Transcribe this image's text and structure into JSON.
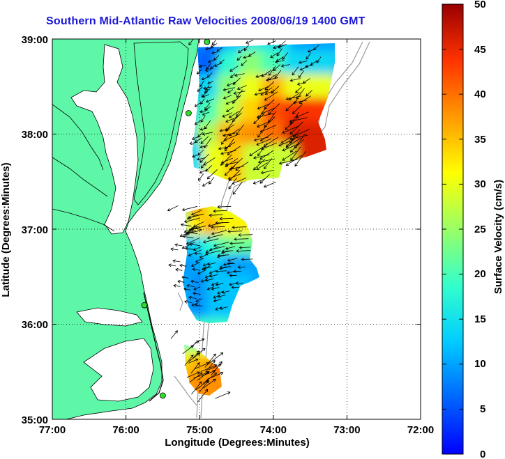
{
  "title": "Southern Mid-Atlantic Raw Velocities 2008/06/19 1400 GMT",
  "x_axis": {
    "label": "Longitude (Degrees:Minutes)",
    "ticks": [
      "77:00",
      "76:00",
      "75:00",
      "74:00",
      "73:00",
      "72:00"
    ]
  },
  "y_axis": {
    "label": "Latitude (Degrees:Minutes)",
    "ticks": [
      "39:00",
      "38:00",
      "37:00",
      "36:00",
      "35:00"
    ]
  },
  "colorbar": {
    "label": "Surface Velocity (cm/s)",
    "ticks": [
      "50",
      "45",
      "40",
      "35",
      "30",
      "25",
      "20",
      "15",
      "10",
      "5",
      "0"
    ],
    "min": 0,
    "max": 50,
    "colormap": "jet"
  },
  "colors": {
    "land": "#5ef7a8",
    "title": "#1a16d6",
    "station": "#2fdc2f",
    "bathymetry": "#9a9a9a"
  },
  "chart_data": {
    "type": "heatmap",
    "description_units": "lon/lat in decimal degrees (west negative), speed in cm/s",
    "xlim": [
      -77,
      -72
    ],
    "ylim": [
      35,
      39
    ],
    "grid": true,
    "regions": [
      {
        "name": "north",
        "cells": [
          {
            "lon": -74.9,
            "lat": 38.85,
            "speed": 9
          },
          {
            "lon": -74.6,
            "lat": 38.85,
            "speed": 6
          },
          {
            "lon": -74.3,
            "lat": 38.85,
            "speed": 12
          },
          {
            "lon": -74.0,
            "lat": 38.85,
            "speed": 16
          },
          {
            "lon": -73.7,
            "lat": 38.85,
            "speed": 14
          },
          {
            "lon": -73.4,
            "lat": 38.85,
            "speed": 10
          },
          {
            "lon": -75.0,
            "lat": 38.6,
            "speed": 8
          },
          {
            "lon": -74.7,
            "lat": 38.6,
            "speed": 6
          },
          {
            "lon": -74.4,
            "lat": 38.6,
            "speed": 18
          },
          {
            "lon": -74.1,
            "lat": 38.6,
            "speed": 24
          },
          {
            "lon": -73.8,
            "lat": 38.6,
            "speed": 20
          },
          {
            "lon": -73.5,
            "lat": 38.6,
            "speed": 14
          },
          {
            "lon": -75.0,
            "lat": 38.35,
            "speed": 8
          },
          {
            "lon": -74.7,
            "lat": 38.35,
            "speed": 14
          },
          {
            "lon": -74.4,
            "lat": 38.35,
            "speed": 24
          },
          {
            "lon": -74.1,
            "lat": 38.35,
            "speed": 30
          },
          {
            "lon": -73.8,
            "lat": 38.35,
            "speed": 36
          },
          {
            "lon": -73.5,
            "lat": 38.35,
            "speed": 30
          },
          {
            "lon": -75.0,
            "lat": 38.1,
            "speed": 10
          },
          {
            "lon": -74.7,
            "lat": 38.1,
            "speed": 20
          },
          {
            "lon": -74.4,
            "lat": 38.1,
            "speed": 27
          },
          {
            "lon": -74.1,
            "lat": 38.1,
            "speed": 34
          },
          {
            "lon": -73.8,
            "lat": 38.1,
            "speed": 42
          },
          {
            "lon": -73.5,
            "lat": 38.1,
            "speed": 44
          },
          {
            "lon": -75.0,
            "lat": 37.85,
            "speed": 12
          },
          {
            "lon": -74.7,
            "lat": 37.85,
            "speed": 26
          },
          {
            "lon": -74.4,
            "lat": 37.85,
            "speed": 36
          },
          {
            "lon": -74.1,
            "lat": 37.85,
            "speed": 38
          },
          {
            "lon": -73.8,
            "lat": 37.85,
            "speed": 40
          },
          {
            "lon": -73.5,
            "lat": 37.85,
            "speed": 46
          },
          {
            "lon": -74.9,
            "lat": 37.62,
            "speed": 14
          },
          {
            "lon": -74.6,
            "lat": 37.62,
            "speed": 30
          },
          {
            "lon": -74.3,
            "lat": 37.62,
            "speed": 35
          },
          {
            "lon": -74.05,
            "lat": 37.62,
            "speed": 28
          }
        ]
      },
      {
        "name": "middle",
        "cells": [
          {
            "lon": -75.1,
            "lat": 37.1,
            "speed": 24
          },
          {
            "lon": -74.85,
            "lat": 37.1,
            "speed": 36
          },
          {
            "lon": -74.6,
            "lat": 37.1,
            "speed": 30
          },
          {
            "lon": -75.15,
            "lat": 36.9,
            "speed": 20
          },
          {
            "lon": -74.9,
            "lat": 36.9,
            "speed": 32
          },
          {
            "lon": -74.65,
            "lat": 36.9,
            "speed": 36
          },
          {
            "lon": -74.45,
            "lat": 36.9,
            "speed": 32
          },
          {
            "lon": -75.15,
            "lat": 36.7,
            "speed": 10
          },
          {
            "lon": -74.9,
            "lat": 36.7,
            "speed": 14
          },
          {
            "lon": -74.65,
            "lat": 36.7,
            "speed": 18
          },
          {
            "lon": -74.45,
            "lat": 36.7,
            "speed": 22
          },
          {
            "lon": -75.15,
            "lat": 36.5,
            "speed": 8
          },
          {
            "lon": -74.9,
            "lat": 36.5,
            "speed": 10
          },
          {
            "lon": -74.65,
            "lat": 36.5,
            "speed": 13
          },
          {
            "lon": -74.4,
            "lat": 36.5,
            "speed": 10
          },
          {
            "lon": -75.1,
            "lat": 36.3,
            "speed": 11
          },
          {
            "lon": -74.85,
            "lat": 36.3,
            "speed": 9
          },
          {
            "lon": -74.6,
            "lat": 36.3,
            "speed": 12
          }
        ]
      },
      {
        "name": "south",
        "cells": [
          {
            "lon": -75.2,
            "lat": 35.7,
            "speed": 20
          },
          {
            "lon": -75.05,
            "lat": 35.55,
            "speed": 30
          },
          {
            "lon": -74.9,
            "lat": 35.45,
            "speed": 42
          },
          {
            "lon": -75.1,
            "lat": 35.4,
            "speed": 35
          },
          {
            "lon": -74.95,
            "lat": 35.3,
            "speed": 38
          }
        ]
      }
    ],
    "stations": [
      {
        "lon": -74.9,
        "lat": 38.97
      },
      {
        "lon": -75.15,
        "lat": 38.22
      },
      {
        "lon": -75.75,
        "lat": 36.2
      },
      {
        "lon": -75.5,
        "lat": 35.25
      }
    ]
  }
}
